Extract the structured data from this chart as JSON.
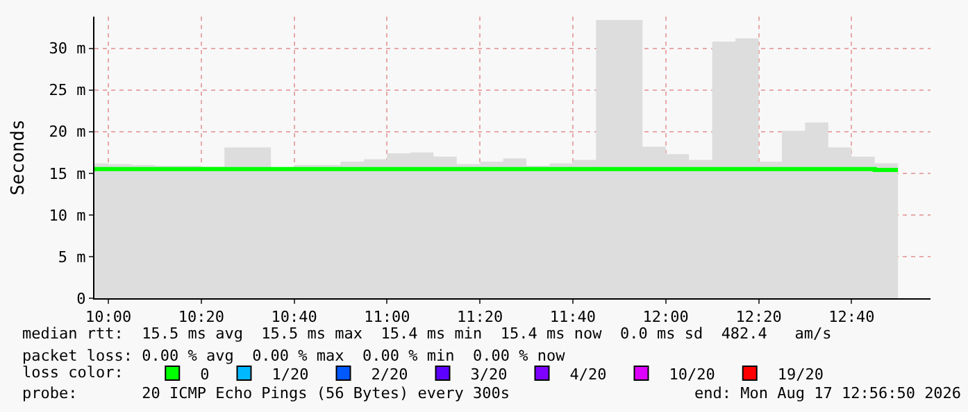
{
  "chart_data": {
    "type": "area",
    "ylabel": "Seconds",
    "x": [
      "2026-08-17T09:57",
      "2026-08-17T10:00",
      "2026-08-17T10:05",
      "2026-08-17T10:10",
      "2026-08-17T10:15",
      "2026-08-17T10:20",
      "2026-08-17T10:25",
      "2026-08-17T10:30",
      "2026-08-17T10:35",
      "2026-08-17T10:40",
      "2026-08-17T10:45",
      "2026-08-17T10:50",
      "2026-08-17T10:55",
      "2026-08-17T11:00",
      "2026-08-17T11:05",
      "2026-08-17T11:10",
      "2026-08-17T11:15",
      "2026-08-17T11:20",
      "2026-08-17T11:25",
      "2026-08-17T11:30",
      "2026-08-17T11:35",
      "2026-08-17T11:40",
      "2026-08-17T11:45",
      "2026-08-17T11:50",
      "2026-08-17T11:55",
      "2026-08-17T12:00",
      "2026-08-17T12:05",
      "2026-08-17T12:10",
      "2026-08-17T12:15",
      "2026-08-17T12:20",
      "2026-08-17T12:25",
      "2026-08-17T12:30",
      "2026-08-17T12:35",
      "2026-08-17T12:40",
      "2026-08-17T12:45",
      "2026-08-17T12:50"
    ],
    "series": [
      {
        "color": "#dddddd",
        "values": [
          16.2,
          16.1,
          16.0,
          15.9,
          15.9,
          15.8,
          18.1,
          18.1,
          15.7,
          16.0,
          16.0,
          16.4,
          16.7,
          17.4,
          17.5,
          17.0,
          16.1,
          16.4,
          16.8,
          15.9,
          16.2,
          16.6,
          33.4,
          33.4,
          18.2,
          17.3,
          16.6,
          30.8,
          31.2,
          16.4,
          20.1,
          21.1,
          18.1,
          17.0,
          16.2,
          16.2
        ]
      },
      {
        "type": "step",
        "name": "0",
        "color": "#00ff00",
        "x": [
          "2026-08-17T09:57",
          "2026-08-17T10:00",
          "2026-08-17T10:05",
          "2026-08-17T10:10",
          "2026-08-17T10:15",
          "2026-08-17T10:20",
          "2026-08-17T10:25",
          "2026-08-17T10:30",
          "2026-08-17T10:35",
          "2026-08-17T10:40",
          "2026-08-17T10:45",
          "2026-08-17T10:50",
          "2026-08-17T10:55",
          "2026-08-17T11:00",
          "2026-08-17T11:05",
          "2026-08-17T11:10",
          "2026-08-17T11:15",
          "2026-08-17T11:20",
          "2026-08-17T11:25",
          "2026-08-17T11:30",
          "2026-08-17T11:35",
          "2026-08-17T11:40",
          "2026-08-17T11:45",
          "2026-08-17T11:50",
          "2026-08-17T11:55",
          "2026-08-17T12:00",
          "2026-08-17T12:05",
          "2026-08-17T12:10",
          "2026-08-17T12:15",
          "2026-08-17T12:20",
          "2026-08-17T12:25",
          "2026-08-17T12:30",
          "2026-08-17T12:35",
          "2026-08-17T12:40",
          "2026-08-17T12:45",
          "2026-08-17T12:50"
        ],
        "values": [
          15.5,
          15.5,
          15.5,
          15.5,
          15.5,
          15.5,
          15.5,
          15.5,
          15.5,
          15.5,
          15.5,
          15.5,
          15.5,
          15.5,
          15.5,
          15.5,
          15.5,
          15.5,
          15.5,
          15.5,
          15.5,
          15.5,
          15.5,
          15.5,
          15.5,
          15.5,
          15.5,
          15.5,
          15.5,
          15.5,
          15.5,
          15.5,
          15.5,
          15.5,
          15.4,
          15.4
        ]
      },
      {
        "type": "step",
        "name": "1/20",
        "color": "#00b8ff",
        "values": [
          null,
          null,
          null,
          null,
          null,
          null,
          null,
          null,
          null,
          null,
          null,
          null,
          null,
          null,
          null,
          null,
          null,
          null,
          null,
          null,
          null,
          null,
          null,
          null,
          null,
          null,
          null,
          null,
          null,
          null,
          null,
          null,
          null,
          null,
          null,
          null
        ]
      },
      {
        "type": "step",
        "name": "2/20",
        "color": "#0059ff",
        "values": [
          null,
          null,
          null,
          null,
          null,
          null,
          null,
          null,
          null,
          null,
          null,
          null,
          null,
          null,
          null,
          null,
          null,
          null,
          null,
          null,
          null,
          null,
          null,
          null,
          null,
          null,
          null,
          null,
          null,
          null,
          null,
          null,
          null,
          null,
          null,
          null
        ]
      },
      {
        "type": "step",
        "name": "3/20",
        "color": "#5e00ff",
        "values": [
          null,
          null,
          null,
          null,
          null,
          null,
          null,
          null,
          null,
          null,
          null,
          null,
          null,
          null,
          null,
          null,
          null,
          null,
          null,
          null,
          null,
          null,
          null,
          null,
          null,
          null,
          null,
          null,
          null,
          null,
          null,
          null,
          null,
          null,
          null,
          null
        ]
      },
      {
        "type": "step",
        "name": "4/20",
        "color": "#7e00ff",
        "values": [
          null,
          null,
          null,
          null,
          null,
          null,
          null,
          null,
          null,
          null,
          null,
          null,
          null,
          null,
          null,
          null,
          null,
          null,
          null,
          null,
          null,
          null,
          null,
          null,
          null,
          null,
          null,
          null,
          null,
          null,
          null,
          null,
          null,
          null,
          null,
          null
        ]
      },
      {
        "type": "step",
        "name": "10/20",
        "color": "#dd00ff",
        "values": [
          null,
          null,
          null,
          null,
          null,
          null,
          null,
          null,
          null,
          null,
          null,
          null,
          null,
          null,
          null,
          null,
          null,
          null,
          null,
          null,
          null,
          null,
          null,
          null,
          null,
          null,
          null,
          null,
          null,
          null,
          null,
          null,
          null,
          null,
          null,
          null
        ]
      },
      {
        "type": "step",
        "name": "19/20",
        "color": "#ff0000",
        "values": [
          null,
          null,
          null,
          null,
          null,
          null,
          null,
          null,
          null,
          null,
          null,
          null,
          null,
          null,
          null,
          null,
          null,
          null,
          null,
          null,
          null,
          null,
          null,
          null,
          null,
          null,
          null,
          null,
          null,
          null,
          null,
          null,
          null,
          null,
          null,
          null
        ]
      }
    ],
    "xlim": [
      "2026-08-17T09:57",
      "2026-08-17T12:57"
    ],
    "xticks": [
      {
        "value": "2026-08-17T10:00",
        "label": "10:00"
      },
      {
        "value": "2026-08-17T10:20",
        "label": "10:20"
      },
      {
        "value": "2026-08-17T10:40",
        "label": "10:40"
      },
      {
        "value": "2026-08-17T11:00",
        "label": "11:00"
      },
      {
        "value": "2026-08-17T11:20",
        "label": "11:20"
      },
      {
        "value": "2026-08-17T11:40",
        "label": "11:40"
      },
      {
        "value": "2026-08-17T12:00",
        "label": "12:00"
      },
      {
        "value": "2026-08-17T12:20",
        "label": "12:20"
      },
      {
        "value": "2026-08-17T12:40",
        "label": "12:40"
      }
    ],
    "ylim": [
      0,
      33.8
    ],
    "yticks": [
      0,
      {
        "value": 5,
        "label": "5 m"
      },
      {
        "value": 10,
        "label": "10 m"
      },
      {
        "value": 15,
        "label": "15 m"
      },
      {
        "value": 20,
        "label": "20 m"
      },
      {
        "value": 25,
        "label": "25 m"
      },
      {
        "value": 30,
        "label": "30 m"
      }
    ],
    "grid": true,
    "legend": "bottom",
    "marker": "none",
    "annotations": [
      "median rtt:  15.5 ms avg  15.5 ms max  15.4 ms min  15.4 ms now  0.0 ms sd  482.4   am/s",
      "packet loss: 0.00 % avg  0.00 % max  0.00 % min  0.00 % now",
      "loss color:",
      "probe:       20 ICMP Echo Pings (56 Bytes) every 300s",
      "end: Mon Aug 17 12:56:50 2026"
    ]
  }
}
